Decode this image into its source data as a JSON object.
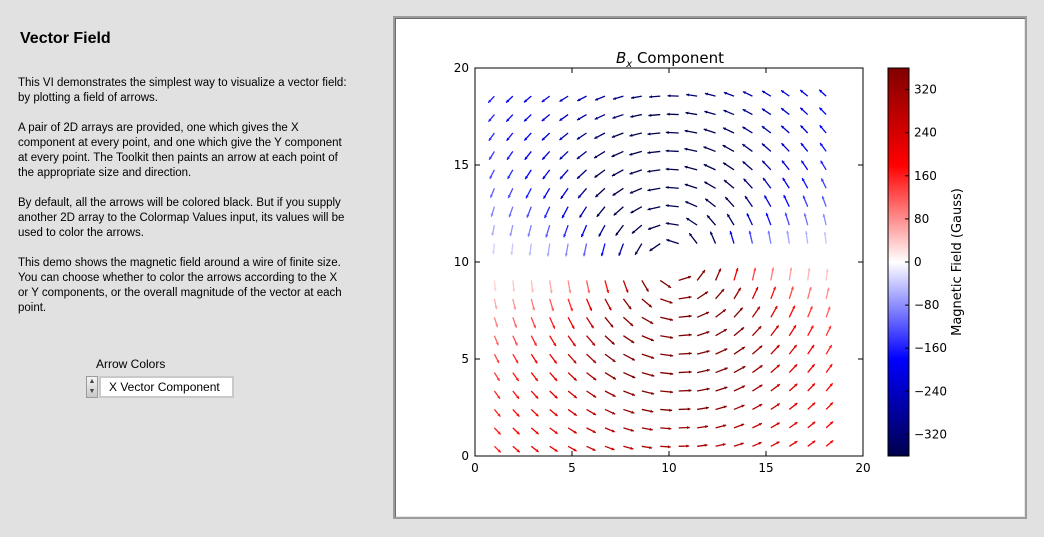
{
  "panel": {
    "title": "Vector Field",
    "paragraphs": [
      "This VI demonstrates the simplest way to visualize a vector field: by plotting a field of arrows.",
      "A pair of 2D arrays are provided, one which gives the X component at every point, and one which give the Y component at every point.  The Toolkit then paints an arrow at each point of the appropriate size and direction.",
      "By default, all the arrows will be colored black.  But if you supply another 2D array to the Colormap Values input, its values will be used to color the arrows.",
      "This demo shows the magnetic field around a wire of finite size.  You can choose whether to color the arrows according to the X or Y components, or the overall magnitude of the vector at each point."
    ],
    "arrow_colors_label": "Arrow Colors",
    "arrow_colors_value": "X Vector Component",
    "spinner_up": "▲",
    "spinner_down": "▼"
  },
  "chart_data": {
    "type": "quiver",
    "title_symbol": "B",
    "title_subscript": "x",
    "title_rest": " Component",
    "xlim": [
      0,
      20
    ],
    "ylim": [
      0,
      20
    ],
    "xticks": [
      "0",
      "5",
      "10",
      "15",
      "20"
    ],
    "yticks": [
      "0",
      "5",
      "10",
      "15",
      "20"
    ],
    "grid": false,
    "field": "magnetic field around a wire centered near (10, 10), circulating counter-clockwise",
    "grid_points": {
      "x_start": 1,
      "y_start": 0.5,
      "spacing": 0.95,
      "nx": 19,
      "ny": 20
    },
    "colorbar": {
      "label": "Magnetic Field (Gauss)",
      "range": [
        -360,
        360
      ],
      "ticks": [
        "320",
        "240",
        "160",
        "80",
        "0",
        "−80",
        "−160",
        "−240",
        "−320"
      ],
      "tick_values": [
        320,
        240,
        160,
        80,
        0,
        -80,
        -160,
        -240,
        -320
      ],
      "colormap": "seismic",
      "colors": {
        "low": "#00004d",
        "mid_low": "#0000ff",
        "mid": "#ffffff",
        "mid_high": "#ff0000",
        "high": "#800000"
      }
    }
  }
}
